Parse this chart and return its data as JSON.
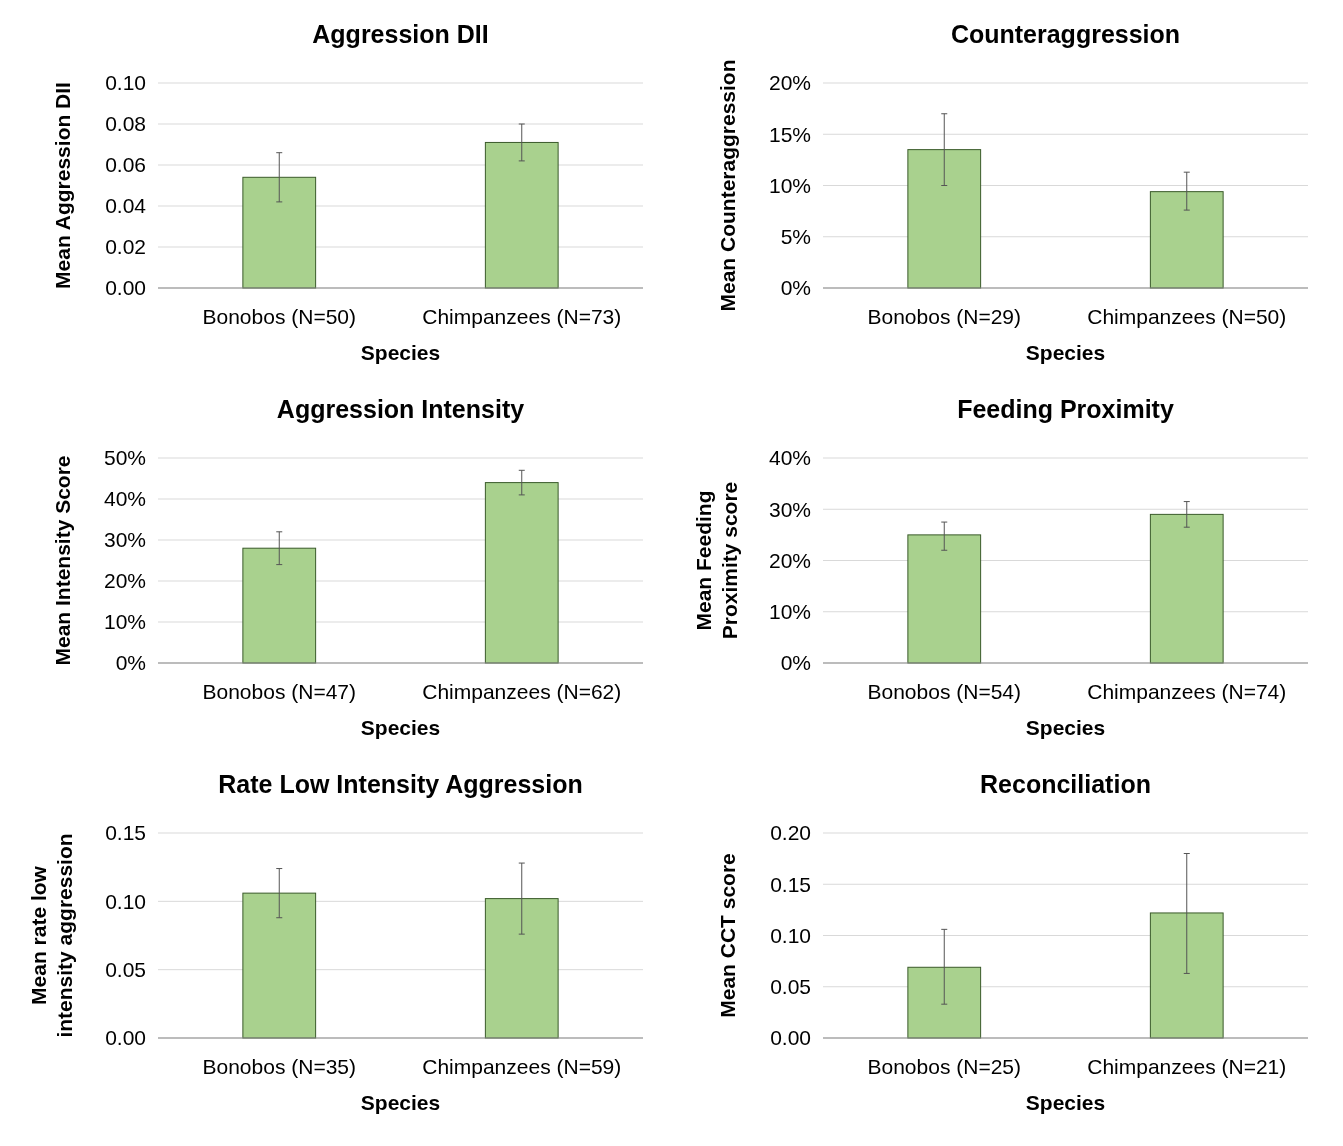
{
  "chart_data": [
    {
      "type": "bar",
      "title": "Aggression DII",
      "xlabel": "Species",
      "ylabel": "Mean Aggression DII",
      "categories": [
        "Bonobos (N=50)",
        "Chimpanzees (N=73)"
      ],
      "values": [
        0.054,
        0.071
      ],
      "errors": [
        [
          0.042,
          0.066
        ],
        [
          0.062,
          0.08
        ]
      ],
      "color": "#a9d18e",
      "ylim": [
        0,
        0.1
      ],
      "yticks": [
        {
          "value": 0,
          "label": "0.00"
        },
        {
          "value": 0.02,
          "label": "0.02"
        },
        {
          "value": 0.04,
          "label": "0.04"
        },
        {
          "value": 0.06,
          "label": "0.06"
        },
        {
          "value": 0.08,
          "label": "0.08"
        },
        {
          "value": 0.1,
          "label": "0.10"
        }
      ],
      "grid": "y"
    },
    {
      "type": "bar",
      "title": "Counteraggression",
      "xlabel": "Species",
      "ylabel": "Mean Counteraggression",
      "categories": [
        "Bonobos (N=29)",
        "Chimpanzees (N=50)"
      ],
      "values": [
        13.5,
        9.4
      ],
      "errors": [
        [
          10,
          17
        ],
        [
          7.6,
          11.3
        ]
      ],
      "color": "#a9d18e",
      "ylim": [
        0,
        20
      ],
      "yticks": [
        {
          "value": 0,
          "label": "0%"
        },
        {
          "value": 5,
          "label": "5%"
        },
        {
          "value": 10,
          "label": "10%"
        },
        {
          "value": 15,
          "label": "15%"
        },
        {
          "value": 20,
          "label": "20%"
        }
      ],
      "grid": "y"
    },
    {
      "type": "bar",
      "title": "Aggression Intensity",
      "xlabel": "Species",
      "ylabel": "Mean Intensity Score",
      "categories": [
        "Bonobos (N=47)",
        "Chimpanzees (N=62)"
      ],
      "values": [
        28,
        44
      ],
      "errors": [
        [
          24,
          32
        ],
        [
          41,
          47
        ]
      ],
      "color": "#a9d18e",
      "ylim": [
        0,
        50
      ],
      "yticks": [
        {
          "value": 0,
          "label": "0%"
        },
        {
          "value": 10,
          "label": "10%"
        },
        {
          "value": 20,
          "label": "20%"
        },
        {
          "value": 30,
          "label": "30%"
        },
        {
          "value": 40,
          "label": "40%"
        },
        {
          "value": 50,
          "label": "50%"
        }
      ],
      "grid": "y"
    },
    {
      "type": "bar",
      "title": "Feeding Proximity",
      "xlabel": "Species",
      "ylabel": "Mean Feeding Proximity score",
      "categories": [
        "Bonobos (N=54)",
        "Chimpanzees (N=74)"
      ],
      "values": [
        25,
        29
      ],
      "errors": [
        [
          22,
          27.5
        ],
        [
          26.5,
          31.5
        ]
      ],
      "color": "#a9d18e",
      "ylim": [
        0,
        40
      ],
      "yticks": [
        {
          "value": 0,
          "label": "0%"
        },
        {
          "value": 10,
          "label": "10%"
        },
        {
          "value": 20,
          "label": "20%"
        },
        {
          "value": 30,
          "label": "30%"
        },
        {
          "value": 40,
          "label": "40%"
        }
      ],
      "grid": "y"
    },
    {
      "type": "bar",
      "title": "Rate Low Intensity Aggression",
      "xlabel": "Species",
      "ylabel": "Mean rate low intensity aggression",
      "categories": [
        "Bonobos (N=35)",
        "Chimpanzees (N=59)"
      ],
      "values": [
        0.106,
        0.102
      ],
      "errors": [
        [
          0.088,
          0.124
        ],
        [
          0.076,
          0.128
        ]
      ],
      "color": "#a9d18e",
      "ylim": [
        0,
        0.15
      ],
      "yticks": [
        {
          "value": 0,
          "label": "0.00"
        },
        {
          "value": 0.05,
          "label": "0.05"
        },
        {
          "value": 0.1,
          "label": "0.10"
        },
        {
          "value": 0.15,
          "label": "0.15"
        }
      ],
      "grid": "y"
    },
    {
      "type": "bar",
      "title": "Reconciliation",
      "xlabel": "Species",
      "ylabel": "Mean CCT score",
      "categories": [
        "Bonobos (N=25)",
        "Chimpanzees (N=21)"
      ],
      "values": [
        0.069,
        0.122
      ],
      "errors": [
        [
          0.033,
          0.106
        ],
        [
          0.063,
          0.18
        ]
      ],
      "color": "#a9d18e",
      "ylim": [
        0,
        0.2
      ],
      "yticks": [
        {
          "value": 0,
          "label": "0.00"
        },
        {
          "value": 0.05,
          "label": "0.05"
        },
        {
          "value": 0.1,
          "label": "0.10"
        },
        {
          "value": 0.15,
          "label": "0.15"
        },
        {
          "value": 0.2,
          "label": "0.20"
        }
      ],
      "grid": "y"
    }
  ]
}
